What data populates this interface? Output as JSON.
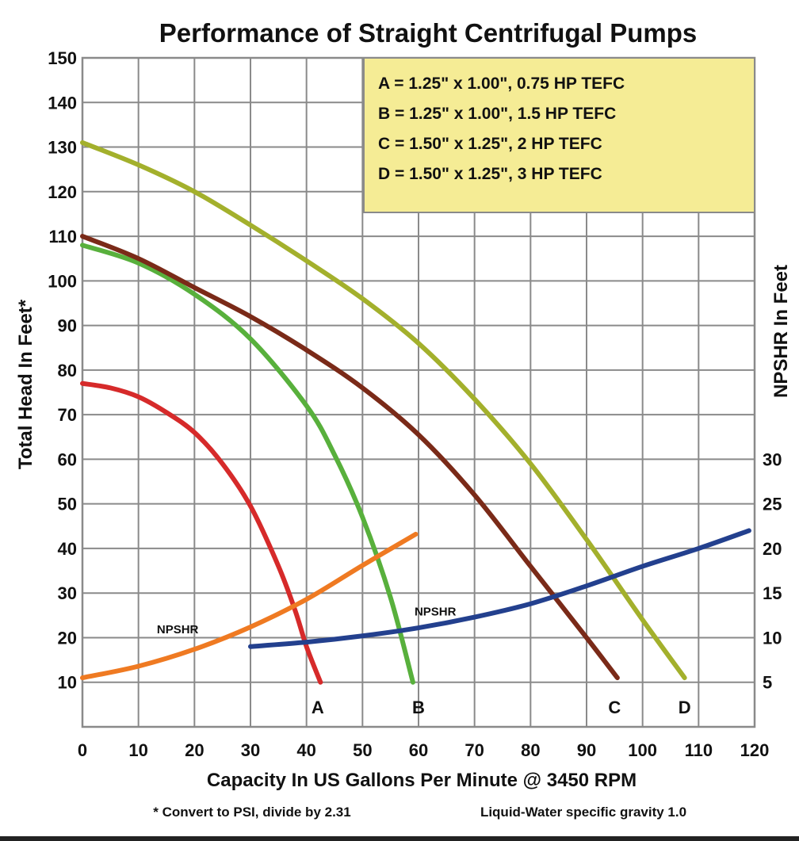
{
  "chart_data": {
    "type": "line",
    "title": "Performance of Straight Centrifugal Pumps",
    "xlabel": "Capacity In US Gallons Per Minute @ 3450 RPM",
    "ylabel": "Total Head In Feet*",
    "y2label": "NPSHR In Feet",
    "xlim": [
      0,
      120
    ],
    "ylim": [
      0,
      150
    ],
    "x_ticks": [
      0,
      10,
      20,
      30,
      40,
      50,
      60,
      70,
      80,
      90,
      100,
      110,
      120
    ],
    "y_ticks": [
      10,
      20,
      30,
      40,
      50,
      60,
      70,
      80,
      90,
      100,
      110,
      120,
      130,
      140,
      150
    ],
    "y2_ticks": [
      5,
      10,
      15,
      20,
      25,
      30
    ],
    "y2_to_y_factor": 2,
    "grid": true,
    "legend": {
      "placement": "top-right",
      "background": "#f5ec95",
      "entries": [
        "A = 1.25\" x 1.00\", 0.75 HP TEFC",
        "B = 1.25\" x 1.00\", 1.5 HP TEFC",
        "C = 1.50\" x 1.25\", 2 HP TEFC",
        "D = 1.50\" x 1.25\", 3 HP TEFC"
      ]
    },
    "series": [
      {
        "name": "A",
        "axis": "head",
        "color": "#d62a2a",
        "x": [
          0,
          5,
          10,
          15,
          20,
          25,
          30,
          35,
          38,
          40,
          42.5
        ],
        "y": [
          77,
          76,
          74,
          70.5,
          66,
          59,
          49.5,
          36,
          26,
          18,
          10
        ]
      },
      {
        "name": "B",
        "axis": "head",
        "color": "#58b03c",
        "x": [
          0,
          10,
          20,
          30,
          40,
          45,
          50,
          55,
          59
        ],
        "y": [
          108,
          104,
          97,
          87,
          72,
          61,
          47,
          29,
          10
        ]
      },
      {
        "name": "C",
        "axis": "head",
        "color": "#7a2a18",
        "x": [
          0,
          10,
          20,
          30,
          40,
          50,
          60,
          70,
          80,
          90,
          95.5
        ],
        "y": [
          110,
          105,
          98.5,
          92,
          84.5,
          76,
          65.5,
          52,
          36,
          20,
          11
        ]
      },
      {
        "name": "D",
        "axis": "head",
        "color": "#a3b02c",
        "x": [
          0,
          10,
          20,
          30,
          40,
          50,
          60,
          70,
          80,
          90,
          100,
          107.5
        ],
        "y": [
          131,
          126,
          120,
          112.5,
          104.5,
          96,
          86,
          73.5,
          59,
          42,
          24,
          11
        ]
      },
      {
        "name": "NPSHR (A, B)",
        "axis": "npshr",
        "color": "#ef7a22",
        "x": [
          0,
          10,
          20,
          30,
          40,
          50,
          59.5
        ],
        "y": [
          5.5,
          6.8,
          8.7,
          11.2,
          14.3,
          18.1,
          21.6
        ]
      },
      {
        "name": "NPSHR (C, D)",
        "axis": "npshr",
        "color": "#23408e",
        "x": [
          30,
          40,
          50,
          60,
          70,
          80,
          90,
          100,
          110,
          119
        ],
        "y": [
          9,
          9.5,
          10.2,
          11.1,
          12.3,
          13.8,
          15.8,
          18,
          20,
          22
        ]
      }
    ],
    "annotations": [
      {
        "text": "A",
        "x": 42,
        "y": 3
      },
      {
        "text": "B",
        "x": 60,
        "y": 3
      },
      {
        "text": "C",
        "x": 95,
        "y": 3
      },
      {
        "text": "D",
        "x": 107.5,
        "y": 3
      },
      {
        "text": "NPSHR",
        "x": 17,
        "y": 21
      },
      {
        "text": "NPSHR",
        "x": 63,
        "y": 25
      }
    ],
    "footnotes": [
      "* Convert to PSI, divide by 2.31",
      "Liquid-Water specific gravity 1.0"
    ]
  }
}
